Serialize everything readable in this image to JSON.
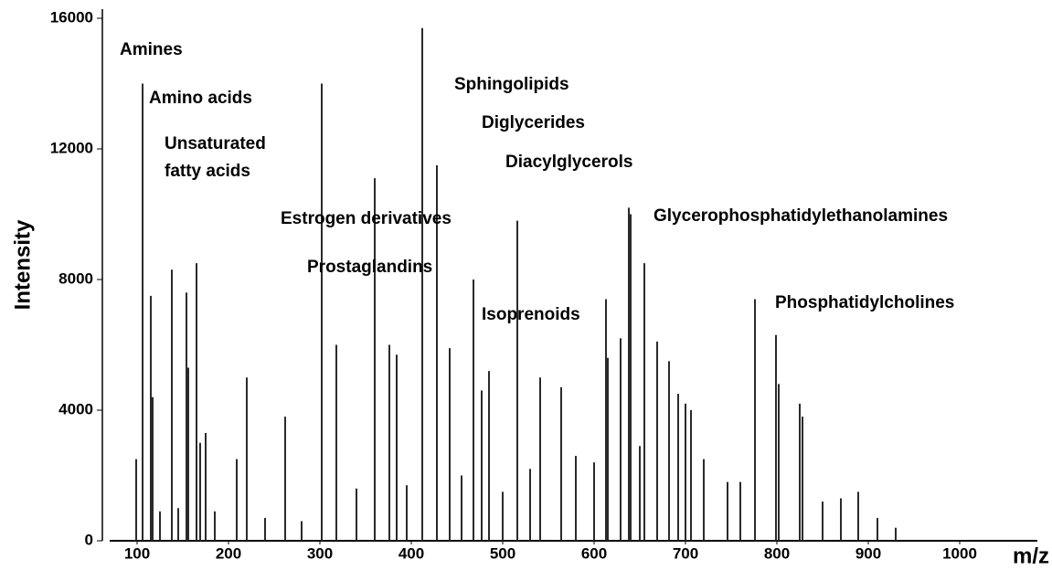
{
  "chart_data": {
    "type": "stem",
    "x_label": "m/z",
    "y_label": "Intensity",
    "color": "#2a2a2a",
    "xlim": [
      70,
      1085
    ],
    "ylim": [
      0,
      16000
    ],
    "xticks": [
      100,
      200,
      300,
      400,
      500,
      600,
      700,
      800,
      900,
      1000
    ],
    "yticks": [
      0,
      4000,
      8000,
      12000,
      16000
    ],
    "annotations": [
      "Amines",
      "Amino acids",
      "Unsaturated",
      "fatty acids",
      "Estrogen derivatives",
      "Prostaglandins",
      "Sphingolipids",
      "Diglycerides",
      "Diacylglycerols",
      "Isoprenoids",
      "Glycerophosphatidylethanolamines",
      "Phosphatidylcholines"
    ],
    "x": [
      99,
      106,
      115,
      117,
      138,
      154,
      156,
      165,
      169,
      175,
      209,
      220,
      262,
      302,
      318,
      360,
      376,
      384,
      412,
      428,
      442,
      468,
      477,
      485,
      516,
      541,
      564,
      613,
      615,
      629,
      638,
      640,
      655,
      669,
      682,
      692,
      700,
      706,
      746,
      776,
      799,
      802,
      825,
      828,
      889,
      125,
      145,
      185,
      240,
      280,
      340,
      395,
      455,
      500,
      530,
      580,
      600,
      650,
      720,
      760,
      850,
      870,
      910,
      930
    ],
    "values": [
      2500,
      14000,
      7500,
      4400,
      8300,
      7600,
      5300,
      8500,
      3000,
      3300,
      2500,
      5000,
      3800,
      14000,
      6000,
      11100,
      6000,
      5700,
      15700,
      11500,
      5900,
      8000,
      4600,
      5200,
      9800,
      5000,
      4700,
      7400,
      5600,
      6200,
      10200,
      10000,
      8500,
      6100,
      5500,
      4500,
      4200,
      4000,
      1800,
      7400,
      6300,
      4800,
      4200,
      3800,
      1500,
      900,
      1000,
      900,
      700,
      600,
      1600,
      1700,
      2000,
      1500,
      2200,
      2600,
      2400,
      2900,
      2500,
      1800,
      1200,
      1300,
      700,
      400
    ]
  }
}
